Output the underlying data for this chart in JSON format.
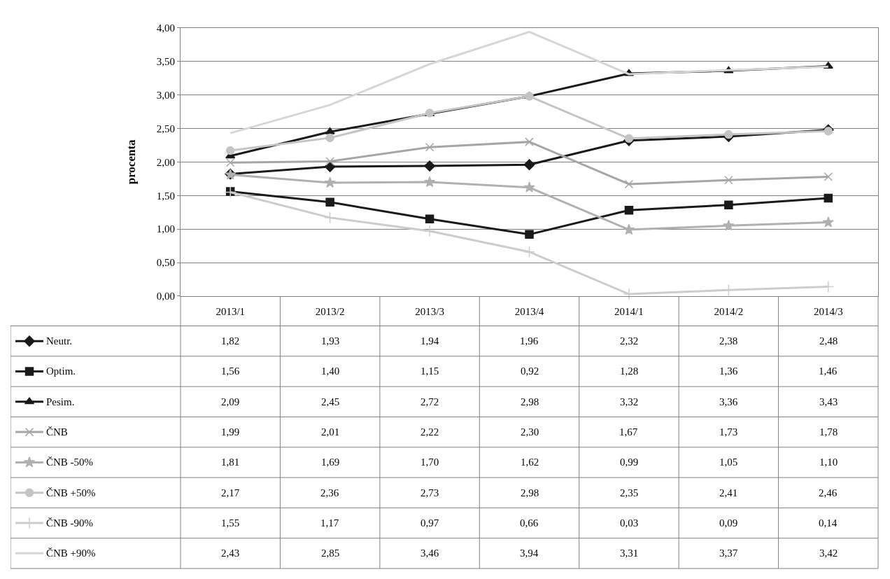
{
  "chart_data": {
    "type": "line",
    "ylabel": "procenta",
    "categories": [
      "2013/1",
      "2013/2",
      "2013/3",
      "2013/4",
      "2014/1",
      "2014/2",
      "2014/3"
    ],
    "ylim": [
      0,
      4
    ],
    "yticks": [
      {
        "value": 0,
        "label": "0,00"
      },
      {
        "value": 0.5,
        "label": "0,50"
      },
      {
        "value": 1,
        "label": "1,00"
      },
      {
        "value": 1.5,
        "label": "1,50"
      },
      {
        "value": 2,
        "label": "2,00"
      },
      {
        "value": 2.5,
        "label": "2,50"
      },
      {
        "value": 3,
        "label": "3,00"
      },
      {
        "value": 3.5,
        "label": "3,50"
      },
      {
        "value": 4,
        "label": "4,00"
      }
    ],
    "grid": "y",
    "legend": "bottom left",
    "series": [
      {
        "name": "Neutr.",
        "color": "#1a1a1a",
        "marker": "diamond",
        "values": [
          1.82,
          1.93,
          1.94,
          1.96,
          2.32,
          2.38,
          2.48
        ],
        "value_labels": [
          "1,82",
          "1,93",
          "1,94",
          "1,96",
          "2,32",
          "2,38",
          "2,48"
        ]
      },
      {
        "name": "Optim.",
        "color": "#1a1a1a",
        "marker": "square",
        "values": [
          1.56,
          1.4,
          1.15,
          0.92,
          1.28,
          1.36,
          1.46
        ],
        "value_labels": [
          "1,56",
          "1,40",
          "1,15",
          "0,92",
          "1,28",
          "1,36",
          "1,46"
        ]
      },
      {
        "name": "Pesim.",
        "color": "#1a1a1a",
        "marker": "triangle",
        "values": [
          2.09,
          2.45,
          2.72,
          2.98,
          3.32,
          3.36,
          3.43
        ],
        "value_labels": [
          "2,09",
          "2,45",
          "2,72",
          "2,98",
          "3,32",
          "3,36",
          "3,43"
        ]
      },
      {
        "name": "ČNB",
        "color": "#a6a6a6",
        "marker": "cross",
        "values": [
          1.99,
          2.01,
          2.22,
          2.3,
          1.67,
          1.73,
          1.78
        ],
        "value_labels": [
          "1,99",
          "2,01",
          "2,22",
          "2,30",
          "1,67",
          "1,73",
          "1,78"
        ]
      },
      {
        "name": "ČNB -50%",
        "color": "#b0b0b0",
        "marker": "star",
        "values": [
          1.81,
          1.69,
          1.7,
          1.62,
          0.99,
          1.05,
          1.1
        ],
        "value_labels": [
          "1,81",
          "1,69",
          "1,70",
          "1,62",
          "0,99",
          "1,05",
          "1,10"
        ]
      },
      {
        "name": "ČNB +50%",
        "color": "#c4c4c4",
        "marker": "circle",
        "values": [
          2.17,
          2.36,
          2.73,
          2.98,
          2.35,
          2.41,
          2.46
        ],
        "value_labels": [
          "2,17",
          "2,36",
          "2,73",
          "2,98",
          "2,35",
          "2,41",
          "2,46"
        ]
      },
      {
        "name": "ČNB -90%",
        "color": "#cccccc",
        "marker": "plus",
        "values": [
          1.55,
          1.17,
          0.97,
          0.66,
          0.03,
          0.09,
          0.14
        ],
        "value_labels": [
          "1,55",
          "1,17",
          "0,97",
          "0,66",
          "0,03",
          "0,09",
          "0,14"
        ]
      },
      {
        "name": "ČNB +90%",
        "color": "#d6d6d6",
        "values": [
          2.43,
          2.85,
          3.46,
          3.94,
          3.31,
          3.37,
          3.42
        ],
        "value_labels": [
          "2,43",
          "2,85",
          "3,46",
          "3,94",
          "3,31",
          "3,37",
          "3,42"
        ]
      }
    ]
  }
}
